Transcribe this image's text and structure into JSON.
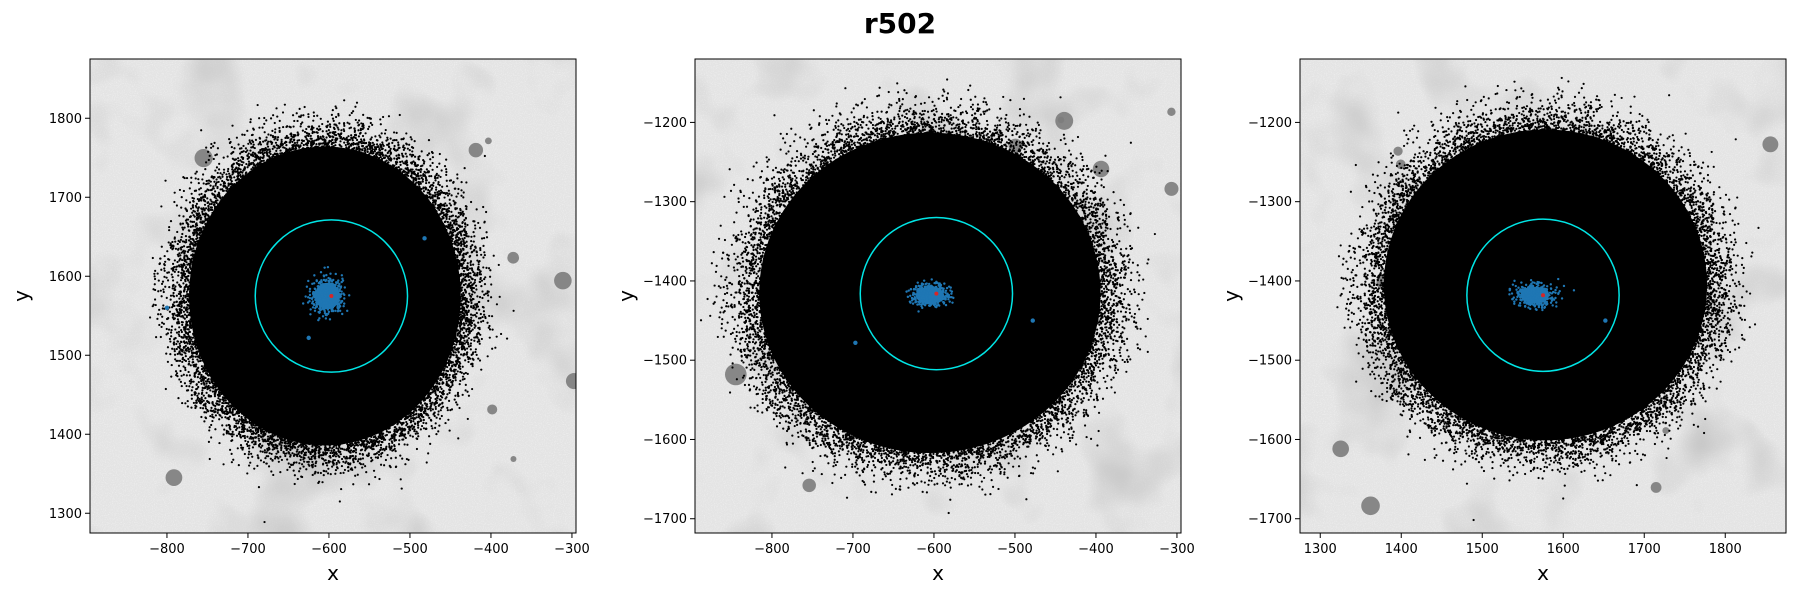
{
  "title": "r502",
  "colors": {
    "halo_points": "#000000",
    "core_points": "#1f77b4",
    "center_marker": "#d62728",
    "aperture_circle": "#00e5e5",
    "background_light": "#e4e4e4",
    "background_dark": "#8a8a8a"
  },
  "chart_data": [
    {
      "type": "scatter",
      "xlabel": "x",
      "ylabel": "y",
      "xlim": [
        -895,
        -295
      ],
      "ylim": [
        1275,
        1875
      ],
      "xticks": [
        -800,
        -700,
        -600,
        -500,
        -400,
        -300
      ],
      "yticks": [
        1300,
        1400,
        1500,
        1600,
        1700,
        1800
      ],
      "xtick_labels": [
        "−800",
        "−700",
        "−600",
        "−500",
        "−400",
        "−300"
      ],
      "ytick_labels": [
        "1300",
        "1400",
        "1500",
        "1600",
        "1700",
        "1800"
      ],
      "center": [
        -597,
        1575
      ],
      "aperture_radius": 94,
      "halo": {
        "center": [
          -605,
          1575
        ],
        "rx": 195,
        "ry": 220
      },
      "core": {
        "center": [
          -602,
          1575
        ],
        "rx": 22,
        "ry": 24
      },
      "core_outliers": [
        [
          -800,
          1560
        ],
        [
          -482,
          1648
        ],
        [
          -625,
          1522
        ]
      ]
    },
    {
      "type": "scatter",
      "xlabel": "x",
      "ylabel": "y",
      "xlim": [
        -895,
        -295
      ],
      "ylim": [
        -1718,
        -1120
      ],
      "xticks": [
        -800,
        -700,
        -600,
        -500,
        -400,
        -300
      ],
      "yticks": [
        -1700,
        -1600,
        -1500,
        -1400,
        -1300,
        -1200
      ],
      "xtick_labels": [
        "−800",
        "−700",
        "−600",
        "−500",
        "−400",
        "−300"
      ],
      "ytick_labels": [
        "−1700",
        "−1600",
        "−1500",
        "−1400",
        "−1300",
        "−1200"
      ],
      "center": [
        -597,
        -1416
      ],
      "aperture_radius": 94,
      "halo": {
        "center": [
          -605,
          -1415
        ],
        "rx": 245,
        "ry": 235
      },
      "core": {
        "center": [
          -605,
          -1418
        ],
        "rx": 25,
        "ry": 15
      },
      "core_outliers": [
        [
          -697,
          -1478
        ],
        [
          -478,
          -1450
        ]
      ]
    },
    {
      "type": "scatter",
      "xlabel": "x",
      "ylabel": "y",
      "xlim": [
        1275,
        1875
      ],
      "ylim": [
        -1718,
        -1120
      ],
      "xticks": [
        1300,
        1400,
        1500,
        1600,
        1700,
        1800
      ],
      "yticks": [
        -1700,
        -1600,
        -1500,
        -1400,
        -1300,
        -1200
      ],
      "xtick_labels": [
        "1300",
        "1400",
        "1500",
        "1600",
        "1700",
        "1800"
      ],
      "ytick_labels": [
        "−1700",
        "−1600",
        "−1500",
        "−1400",
        "−1300",
        "−1200"
      ],
      "center": [
        1575,
        -1418
      ],
      "aperture_radius": 94,
      "halo": {
        "center": [
          1578,
          -1405
        ],
        "rx": 232,
        "ry": 228
      },
      "core": {
        "center": [
          1565,
          -1418
        ],
        "rx": 25,
        "ry": 15
      },
      "core_outliers": [
        [
          1652,
          -1450
        ]
      ]
    }
  ]
}
